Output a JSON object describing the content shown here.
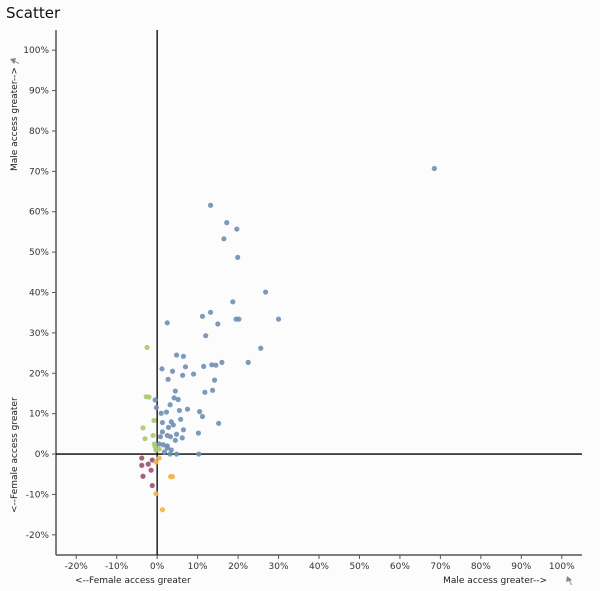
{
  "chart_data": {
    "type": "scatter",
    "title": "Scatter",
    "xlabel_left": "<--Female access greater",
    "xlabel_right": "Male access greater-->",
    "ylabel_top": "Male access greater-->",
    "ylabel_bottom": "<--Female access greater",
    "xlim": [
      -25,
      105
    ],
    "ylim": [
      -25,
      105
    ],
    "xticks": [
      -20,
      -10,
      0,
      10,
      20,
      30,
      40,
      50,
      60,
      70,
      80,
      90,
      100
    ],
    "yticks": [
      -20,
      -10,
      0,
      10,
      20,
      30,
      40,
      50,
      60,
      70,
      80,
      90,
      100
    ],
    "tick_format": "%",
    "grid": false,
    "colors": {
      "blue": "#6f8fb4",
      "green": "#a9c96a",
      "purple": "#9a5070",
      "orange": "#f2b447"
    },
    "points": [
      {
        "x": 68.5,
        "y": 70.7,
        "c": "blue"
      },
      {
        "x": 13.2,
        "y": 61.6,
        "c": "blue"
      },
      {
        "x": 17.2,
        "y": 57.3,
        "c": "blue"
      },
      {
        "x": 19.7,
        "y": 55.7,
        "c": "blue"
      },
      {
        "x": 16.5,
        "y": 53.3,
        "c": "blue"
      },
      {
        "x": 19.9,
        "y": 48.7,
        "c": "blue"
      },
      {
        "x": 26.8,
        "y": 40.1,
        "c": "blue"
      },
      {
        "x": 18.7,
        "y": 37.7,
        "c": "blue"
      },
      {
        "x": 13.2,
        "y": 35.1,
        "c": "blue"
      },
      {
        "x": 11.2,
        "y": 34.1,
        "c": "blue"
      },
      {
        "x": 19.5,
        "y": 33.4,
        "c": "blue"
      },
      {
        "x": 20.2,
        "y": 33.4,
        "c": "blue"
      },
      {
        "x": 30.0,
        "y": 33.4,
        "c": "blue"
      },
      {
        "x": 2.5,
        "y": 32.5,
        "c": "blue"
      },
      {
        "x": 15.0,
        "y": 32.2,
        "c": "blue"
      },
      {
        "x": 12.0,
        "y": 29.3,
        "c": "blue"
      },
      {
        "x": 25.6,
        "y": 26.2,
        "c": "blue"
      },
      {
        "x": 4.8,
        "y": 24.5,
        "c": "blue"
      },
      {
        "x": 6.5,
        "y": 24.2,
        "c": "blue"
      },
      {
        "x": 16.0,
        "y": 22.7,
        "c": "blue"
      },
      {
        "x": 22.5,
        "y": 22.7,
        "c": "blue"
      },
      {
        "x": 13.5,
        "y": 22.1,
        "c": "blue"
      },
      {
        "x": 14.5,
        "y": 22.0,
        "c": "blue"
      },
      {
        "x": 11.5,
        "y": 21.7,
        "c": "blue"
      },
      {
        "x": 7.0,
        "y": 21.6,
        "c": "blue"
      },
      {
        "x": 1.2,
        "y": 21.1,
        "c": "blue"
      },
      {
        "x": 3.8,
        "y": 20.5,
        "c": "blue"
      },
      {
        "x": 9.0,
        "y": 19.8,
        "c": "blue"
      },
      {
        "x": 6.3,
        "y": 19.5,
        "c": "blue"
      },
      {
        "x": 2.7,
        "y": 18.5,
        "c": "blue"
      },
      {
        "x": 14.2,
        "y": 18.3,
        "c": "blue"
      },
      {
        "x": 13.7,
        "y": 15.8,
        "c": "blue"
      },
      {
        "x": 4.5,
        "y": 15.6,
        "c": "blue"
      },
      {
        "x": 11.8,
        "y": 15.3,
        "c": "blue"
      },
      {
        "x": 4.2,
        "y": 13.9,
        "c": "blue"
      },
      {
        "x": 5.2,
        "y": 13.5,
        "c": "blue"
      },
      {
        "x": -0.5,
        "y": 13.4,
        "c": "blue"
      },
      {
        "x": 3.2,
        "y": 12.2,
        "c": "blue"
      },
      {
        "x": -0.2,
        "y": 11.5,
        "c": "blue"
      },
      {
        "x": 7.5,
        "y": 11.1,
        "c": "blue"
      },
      {
        "x": 5.5,
        "y": 10.8,
        "c": "blue"
      },
      {
        "x": 10.5,
        "y": 10.5,
        "c": "blue"
      },
      {
        "x": 2.3,
        "y": 10.4,
        "c": "blue"
      },
      {
        "x": 1.0,
        "y": 10.1,
        "c": "blue"
      },
      {
        "x": 11.2,
        "y": 9.3,
        "c": "blue"
      },
      {
        "x": 5.8,
        "y": 8.6,
        "c": "blue"
      },
      {
        "x": 3.5,
        "y": 8.0,
        "c": "blue"
      },
      {
        "x": 1.3,
        "y": 7.8,
        "c": "blue"
      },
      {
        "x": 15.2,
        "y": 7.6,
        "c": "blue"
      },
      {
        "x": 4.0,
        "y": 7.2,
        "c": "blue"
      },
      {
        "x": 2.8,
        "y": 6.6,
        "c": "blue"
      },
      {
        "x": 6.5,
        "y": 6.0,
        "c": "blue"
      },
      {
        "x": 1.3,
        "y": 5.5,
        "c": "blue"
      },
      {
        "x": 10.2,
        "y": 5.2,
        "c": "blue"
      },
      {
        "x": 4.8,
        "y": 4.9,
        "c": "blue"
      },
      {
        "x": 2.5,
        "y": 4.6,
        "c": "blue"
      },
      {
        "x": 0.8,
        "y": 4.3,
        "c": "blue"
      },
      {
        "x": 3.3,
        "y": 4.3,
        "c": "blue"
      },
      {
        "x": 6.2,
        "y": 4.0,
        "c": "blue"
      },
      {
        "x": 4.5,
        "y": 3.4,
        "c": "blue"
      },
      {
        "x": 0.5,
        "y": 2.5,
        "c": "blue"
      },
      {
        "x": 1.5,
        "y": 2.3,
        "c": "blue"
      },
      {
        "x": 2.5,
        "y": 2.0,
        "c": "blue"
      },
      {
        "x": 2.5,
        "y": 1.5,
        "c": "blue"
      },
      {
        "x": 3.5,
        "y": 1.0,
        "c": "blue"
      },
      {
        "x": 1.8,
        "y": 0.5,
        "c": "blue"
      },
      {
        "x": 3.2,
        "y": 0.0,
        "c": "blue"
      },
      {
        "x": 4.8,
        "y": 0.0,
        "c": "blue"
      },
      {
        "x": 10.3,
        "y": 0.0,
        "c": "blue"
      },
      {
        "x": -2.5,
        "y": 26.4,
        "c": "green"
      },
      {
        "x": -2.7,
        "y": 14.2,
        "c": "green"
      },
      {
        "x": -2.0,
        "y": 14.1,
        "c": "green"
      },
      {
        "x": -0.8,
        "y": 8.3,
        "c": "green"
      },
      {
        "x": -3.5,
        "y": 6.5,
        "c": "green"
      },
      {
        "x": -1.0,
        "y": 4.6,
        "c": "green"
      },
      {
        "x": -3.0,
        "y": 3.8,
        "c": "green"
      },
      {
        "x": -0.7,
        "y": 2.5,
        "c": "green"
      },
      {
        "x": -0.5,
        "y": 1.8,
        "c": "green"
      },
      {
        "x": -0.3,
        "y": 1.0,
        "c": "green"
      },
      {
        "x": 0.5,
        "y": 1.2,
        "c": "green"
      },
      {
        "x": -3.8,
        "y": -1.0,
        "c": "purple"
      },
      {
        "x": -1.2,
        "y": -1.5,
        "c": "purple"
      },
      {
        "x": -3.8,
        "y": -2.8,
        "c": "purple"
      },
      {
        "x": -2.2,
        "y": -2.5,
        "c": "purple"
      },
      {
        "x": -1.5,
        "y": -4.0,
        "c": "purple"
      },
      {
        "x": -3.5,
        "y": -5.5,
        "c": "purple"
      },
      {
        "x": -1.2,
        "y": -7.8,
        "c": "purple"
      },
      {
        "x": 0.5,
        "y": -1.0,
        "c": "orange"
      },
      {
        "x": -0.3,
        "y": -2.0,
        "c": "orange"
      },
      {
        "x": 3.3,
        "y": -5.6,
        "c": "orange"
      },
      {
        "x": 3.8,
        "y": -5.6,
        "c": "orange"
      },
      {
        "x": -0.3,
        "y": -9.8,
        "c": "orange"
      },
      {
        "x": 1.3,
        "y": -13.8,
        "c": "orange"
      }
    ]
  }
}
